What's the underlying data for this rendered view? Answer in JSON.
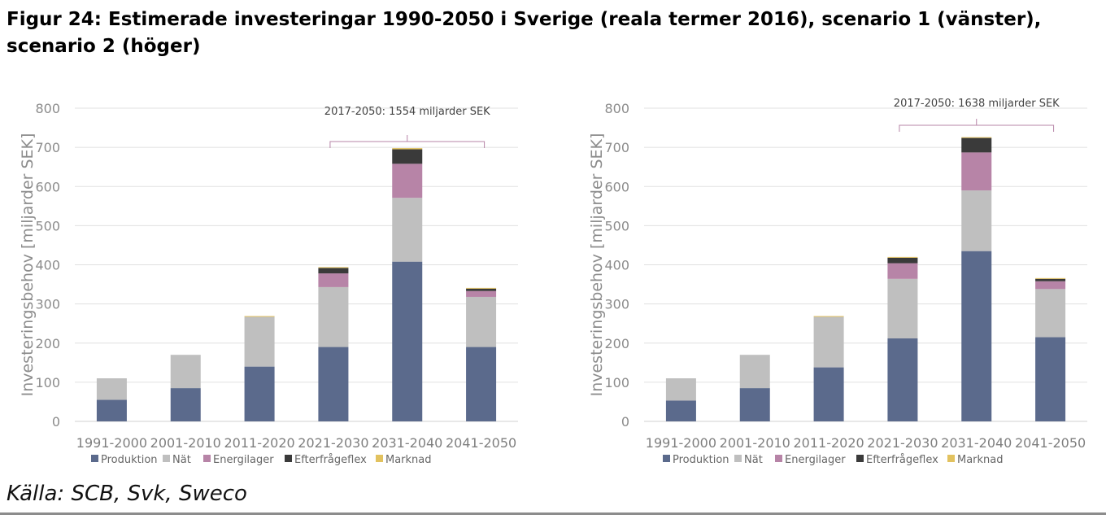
{
  "title": "Figur 24: Estimerade investeringar 1990-2050 i Sverige (reala termer 2016), scenario 1 (vänster), scenario 2 (höger)",
  "source": "Källa: SCB, Svk, Sweco",
  "colors": {
    "Produktion": "#5b6a8c",
    "Nät": "#bfbfbf",
    "Energilager": "#b784a7",
    "Efterfrågeflex": "#3a3a3a",
    "Marknad": "#e2c25f"
  },
  "chart_data": [
    {
      "type": "bar",
      "stacked": true,
      "title": "",
      "xlabel": "",
      "ylabel": "Investeringsbehov [miljarder SEK]",
      "ylim": [
        0,
        800
      ],
      "yticks": [
        0,
        100,
        200,
        300,
        400,
        500,
        600,
        700,
        800
      ],
      "categories": [
        "1991-2000",
        "2001-2010",
        "2011-2020",
        "2021-2030",
        "2031-2040",
        "2041-2050"
      ],
      "series": [
        {
          "name": "Produktion",
          "values": [
            55,
            85,
            140,
            190,
            408,
            190
          ]
        },
        {
          "name": "Nät",
          "values": [
            55,
            85,
            127,
            153,
            163,
            128
          ]
        },
        {
          "name": "Energilager",
          "values": [
            0,
            0,
            0,
            35,
            87,
            15
          ]
        },
        {
          "name": "Efterfrågeflex",
          "values": [
            0,
            0,
            0,
            14,
            37,
            6
          ]
        },
        {
          "name": "Marknad",
          "values": [
            0,
            0,
            2,
            2,
            3,
            2
          ]
        }
      ],
      "annotation": {
        "label": "2017-2050: 1554 miljarder SEK",
        "from": "2021-2030",
        "to": "2041-2050"
      },
      "legend": "bottom"
    },
    {
      "type": "bar",
      "stacked": true,
      "title": "",
      "xlabel": "",
      "ylabel": "Investeringsbehov [miljarder SEK]",
      "ylim": [
        0,
        800
      ],
      "yticks": [
        0,
        100,
        200,
        300,
        400,
        500,
        600,
        700,
        800
      ],
      "categories": [
        "1991-2000",
        "2001-2010",
        "2011-2020",
        "2021-2030",
        "2031-2040",
        "2041-2050"
      ],
      "series": [
        {
          "name": "Produktion",
          "values": [
            53,
            85,
            138,
            212,
            435,
            215
          ]
        },
        {
          "name": "Nät",
          "values": [
            57,
            85,
            129,
            152,
            155,
            123
          ]
        },
        {
          "name": "Energilager",
          "values": [
            0,
            0,
            0,
            40,
            97,
            20
          ]
        },
        {
          "name": "Efterfrågeflex",
          "values": [
            0,
            0,
            0,
            14,
            37,
            6
          ]
        },
        {
          "name": "Marknad",
          "values": [
            0,
            0,
            2,
            2,
            2,
            2
          ]
        }
      ],
      "annotation": {
        "label": "2017-2050: 1638 miljarder SEK",
        "from": "2021-2030",
        "to": "2041-2050"
      },
      "legend": "bottom"
    }
  ]
}
